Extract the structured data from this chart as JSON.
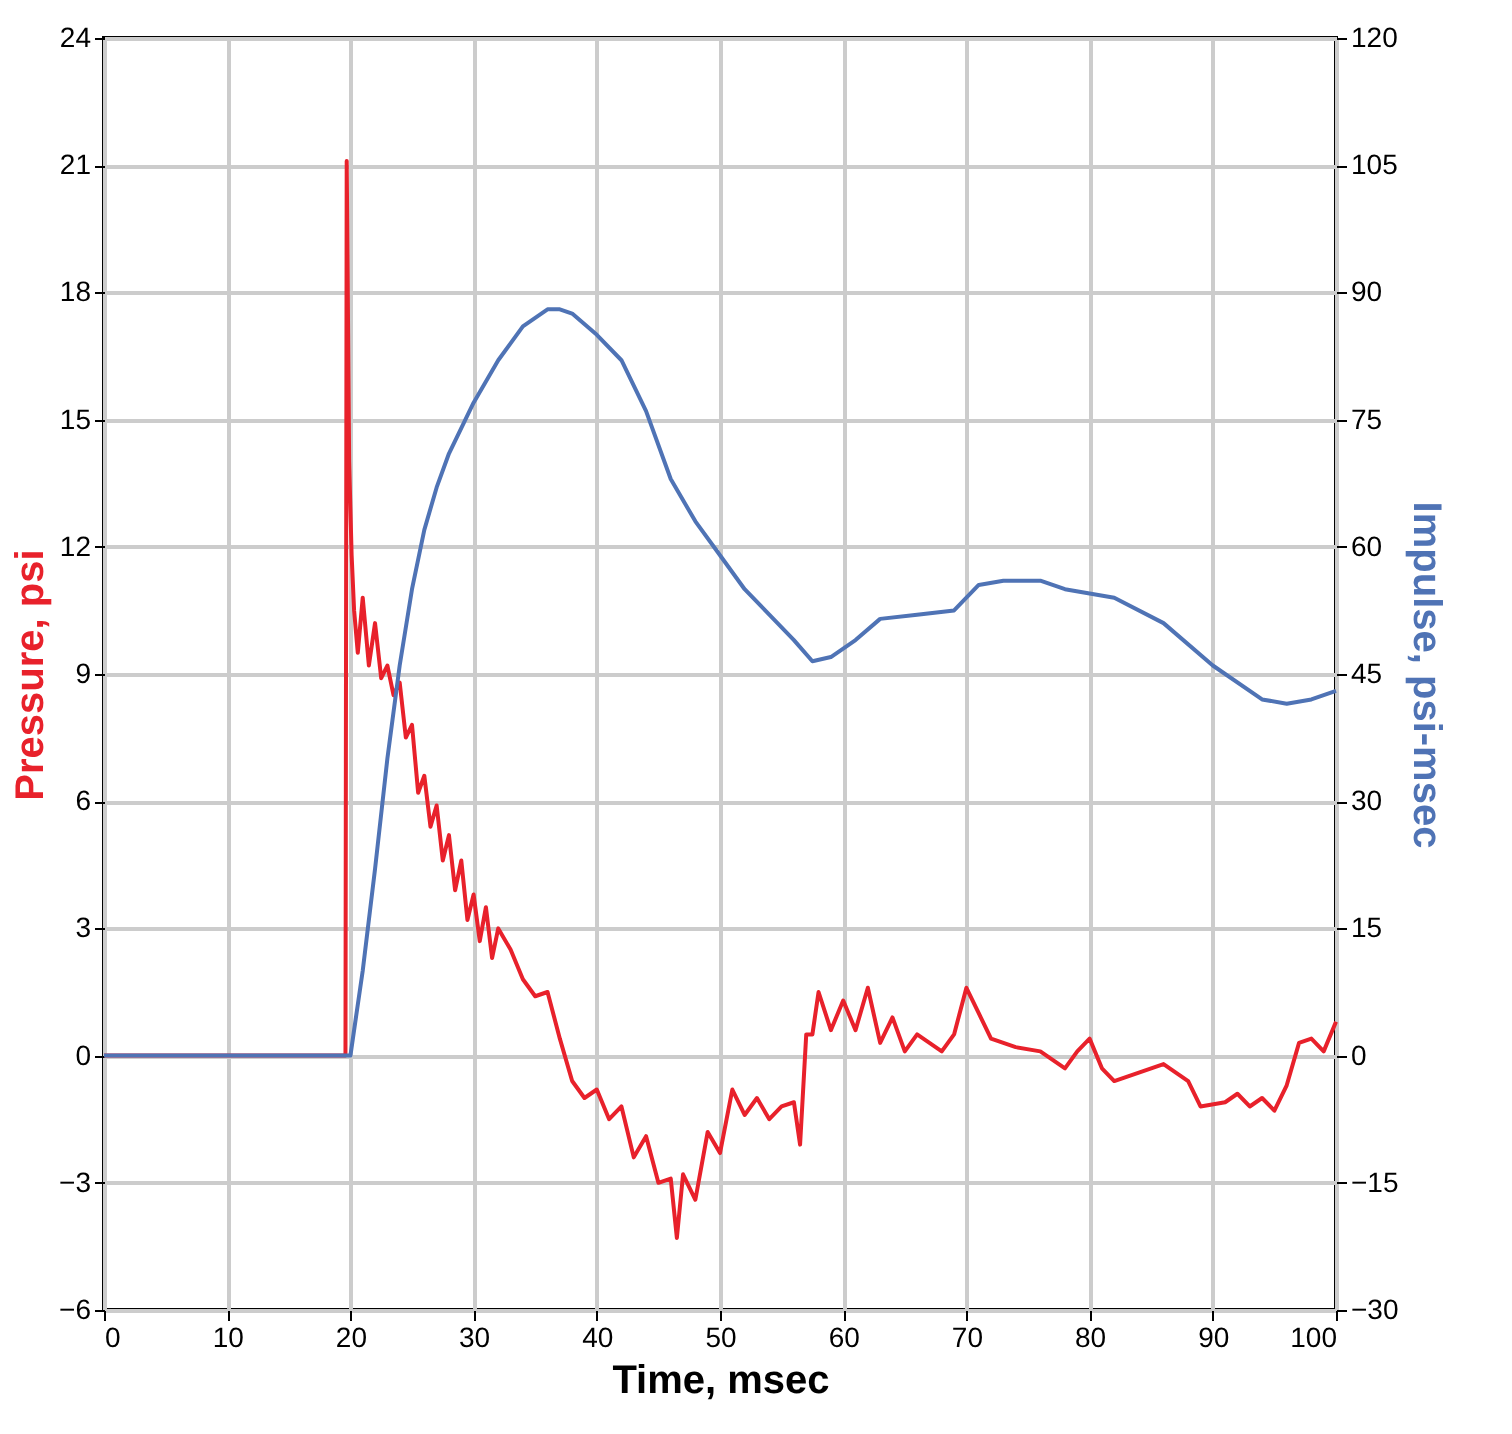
{
  "chart_data": {
    "type": "line",
    "xlabel": "Time, msec",
    "ylabel": "Pressure, psi",
    "y2label": "Impulse, psi-msec",
    "xlim": [
      0,
      100
    ],
    "xticks": [
      0,
      10,
      20,
      30,
      40,
      50,
      60,
      70,
      80,
      90,
      100
    ],
    "ylim": [
      -6,
      24
    ],
    "yticks": [
      -6,
      -3,
      0,
      3,
      6,
      9,
      12,
      15,
      18,
      21,
      24
    ],
    "y2lim": [
      -30,
      120
    ],
    "y2ticks": [
      -30,
      -15,
      0,
      15,
      30,
      45,
      60,
      75,
      90,
      105,
      120
    ],
    "grid": true,
    "series": [
      {
        "color": "#e8212b",
        "axis": "y",
        "x": [
          0,
          19.6,
          19.7,
          19.9,
          20.1,
          20.3,
          20.6,
          21,
          21.5,
          22,
          22.5,
          23,
          23.5,
          24,
          24.5,
          25,
          25.5,
          26,
          26.5,
          27,
          27.5,
          28,
          28.5,
          29,
          29.5,
          30,
          30.5,
          31,
          31.5,
          32,
          33,
          34,
          35,
          36,
          37,
          38,
          39,
          40,
          41,
          42,
          43,
          44,
          45,
          46,
          46.5,
          47,
          48,
          49,
          50,
          51,
          52,
          53,
          54,
          55,
          56,
          56.5,
          57,
          57.5,
          58,
          59,
          60,
          61,
          62,
          63,
          64,
          65,
          66,
          67,
          68,
          69,
          70,
          71,
          72,
          74,
          76,
          78,
          79,
          80,
          81,
          82,
          84,
          86,
          88,
          89,
          91,
          92,
          93,
          94,
          95,
          96,
          97,
          98,
          99,
          100
        ],
        "values": [
          0,
          0,
          21.1,
          14,
          11.8,
          10.5,
          9.5,
          10.8,
          9.2,
          10.2,
          8.9,
          9.2,
          8.5,
          8.8,
          7.5,
          7.8,
          6.2,
          6.6,
          5.4,
          5.9,
          4.6,
          5.2,
          3.9,
          4.6,
          3.2,
          3.8,
          2.7,
          3.5,
          2.3,
          3,
          2.5,
          1.8,
          1.4,
          1.5,
          0.4,
          -0.6,
          -1,
          -0.8,
          -1.5,
          -1.2,
          -2.4,
          -1.9,
          -3,
          -2.9,
          -4.3,
          -2.8,
          -3.4,
          -1.8,
          -2.3,
          -0.8,
          -1.4,
          -1,
          -1.5,
          -1.2,
          -1.1,
          -2.1,
          0.5,
          0.5,
          1.5,
          0.6,
          1.3,
          0.6,
          1.6,
          0.3,
          0.9,
          0.1,
          0.5,
          0.3,
          0.1,
          0.5,
          1.6,
          1,
          0.4,
          0.2,
          0.1,
          -0.3,
          0.1,
          0.4,
          -0.3,
          -0.6,
          -0.4,
          -0.2,
          -0.6,
          -1.2,
          -1.1,
          -0.9,
          -1.2,
          -1,
          -1.3,
          -0.7,
          0.3,
          0.4,
          0.1,
          0.8
        ]
      },
      {
        "color": "#4f73b5",
        "axis": "y2",
        "x": [
          0,
          19.6,
          20,
          21,
          22,
          23,
          24,
          25,
          26,
          27,
          28,
          30,
          32,
          34,
          36,
          37,
          38,
          40,
          42,
          44,
          46,
          48,
          50,
          52,
          54,
          56,
          57.5,
          59,
          61,
          63,
          66,
          69,
          71,
          73,
          76,
          78,
          82,
          86,
          90,
          94,
          96,
          98,
          100
        ],
        "values": [
          0,
          0,
          0,
          10,
          22,
          35,
          46,
          55,
          62,
          67,
          71,
          77,
          82,
          86,
          88,
          88,
          87.5,
          85,
          82,
          76,
          68,
          63,
          59,
          55,
          52,
          49,
          46.5,
          47,
          49,
          51.5,
          52,
          52.5,
          55.5,
          56,
          56,
          55,
          54,
          51,
          46,
          42,
          41.5,
          42,
          43
        ]
      }
    ]
  }
}
